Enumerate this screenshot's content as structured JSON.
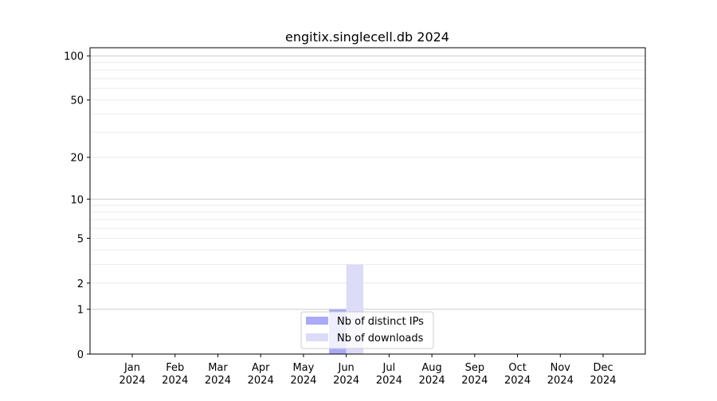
{
  "chart_data": {
    "type": "bar",
    "title": "engitix.singlecell.db 2024",
    "xlabel": "",
    "ylabel": "",
    "y_scale": "symlog (log of 1+y)",
    "ylim": [
      0,
      113
    ],
    "y_ticks": [
      0,
      1,
      2,
      5,
      10,
      20,
      50,
      100
    ],
    "grid": "horizontal major and minor",
    "legend_position": "bottom-center",
    "categories": [
      "Jan\n2024",
      "Feb\n2024",
      "Mar\n2024",
      "Apr\n2024",
      "May\n2024",
      "Jun\n2024",
      "Jul\n2024",
      "Aug\n2024",
      "Sep\n2024",
      "Oct\n2024",
      "Nov\n2024",
      "Dec\n2024"
    ],
    "category_labels": [
      [
        "Jan",
        "2024"
      ],
      [
        "Feb",
        "2024"
      ],
      [
        "Mar",
        "2024"
      ],
      [
        "Apr",
        "2024"
      ],
      [
        "May",
        "2024"
      ],
      [
        "Jun",
        "2024"
      ],
      [
        "Jul",
        "2024"
      ],
      [
        "Aug",
        "2024"
      ],
      [
        "Sep",
        "2024"
      ],
      [
        "Oct",
        "2024"
      ],
      [
        "Nov",
        "2024"
      ],
      [
        "Dec",
        "2024"
      ]
    ],
    "series": [
      {
        "name": "Nb of distinct IPs",
        "color": "#aaaaf8",
        "values": [
          0,
          0,
          0,
          0,
          0,
          1,
          0,
          0,
          0,
          0,
          0,
          0
        ]
      },
      {
        "name": "Nb of downloads",
        "color": "#dcdcf8",
        "values": [
          0,
          0,
          0,
          0,
          0,
          3,
          0,
          0,
          0,
          0,
          0,
          0
        ]
      }
    ]
  }
}
